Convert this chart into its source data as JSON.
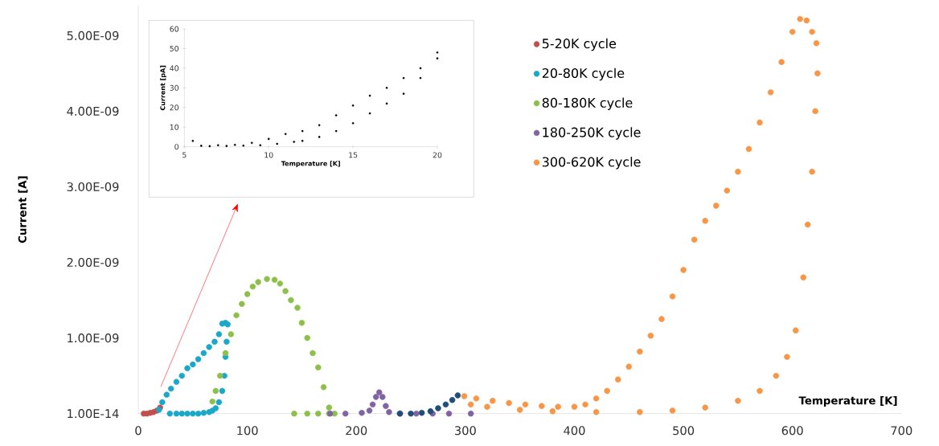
{
  "chart_data": [
    {
      "type": "scatter",
      "xlabel": "Temperature [K]",
      "ylabel": "Current [A]",
      "xlim": [
        0,
        700
      ],
      "xticks": [
        0,
        100,
        200,
        300,
        400,
        500,
        600,
        700
      ],
      "ylim": [
        0,
        5.4e-09
      ],
      "yticks": [
        {
          "value": 1e-14,
          "label": "1.00E-14"
        },
        {
          "value": 1e-09,
          "label": "1.00E-09"
        },
        {
          "value": 2e-09,
          "label": "2.00E-09"
        },
        {
          "value": 3e-09,
          "label": "3.00E-09"
        },
        {
          "value": 4e-09,
          "label": "4.00E-09"
        },
        {
          "value": 5e-09,
          "label": "5.00E-09"
        }
      ],
      "legend": "top",
      "marker": "circle",
      "series": [
        {
          "name": "5-20K cycle",
          "color": "#c0504d",
          "x": [
            5,
            8,
            11,
            14,
            17,
            20
          ],
          "values": [
            0,
            0,
            1e-11,
            2e-11,
            4e-11,
            8e-11
          ]
        },
        {
          "name": "20-80K cycle",
          "color": "#1ba8c8",
          "x": [
            19,
            22,
            26,
            30,
            35,
            40,
            45,
            50,
            55,
            60,
            65,
            70,
            74,
            77,
            80,
            82,
            81,
            80,
            79,
            77,
            74,
            71,
            68,
            65,
            60,
            55,
            50,
            45,
            40,
            35,
            29
          ],
          "values": [
            5e-11,
            1.5e-10,
            2.5e-10,
            3.3e-10,
            4.2e-10,
            5e-10,
            6e-10,
            6.5e-10,
            7.2e-10,
            8e-10,
            8.8e-10,
            9.5e-10,
            1.05e-09,
            1.19e-09,
            1.2e-09,
            1.18e-09,
            9.5e-10,
            7.5e-10,
            5e-10,
            3e-10,
            1.5e-10,
            7e-11,
            4e-11,
            2e-11,
            1e-11,
            0,
            0,
            0,
            0,
            0,
            0
          ]
        },
        {
          "name": "80-180K cycle",
          "color": "#8cc04a",
          "x": [
            68,
            71,
            75,
            80,
            85,
            90,
            95,
            100,
            105,
            110,
            118,
            125,
            130,
            135,
            140,
            146,
            150,
            155,
            160,
            165,
            170,
            175,
            180,
            175,
            165,
            155,
            143
          ],
          "values": [
            1.6e-10,
            3e-10,
            5e-10,
            8e-10,
            1.05e-09,
            1.3e-09,
            1.45e-09,
            1.58e-09,
            1.68e-09,
            1.74e-09,
            1.78e-09,
            1.77e-09,
            1.72e-09,
            1.62e-09,
            1.5e-09,
            1.4e-09,
            1.2e-09,
            1e-09,
            8e-10,
            6.1e-10,
            3.5e-10,
            8e-11,
            0,
            0,
            0,
            0,
            0
          ]
        },
        {
          "name": "180-250K cycle",
          "color": "#8064a2",
          "x": [
            176,
            190,
            205,
            212,
            215,
            218,
            221,
            224,
            227,
            230,
            240,
            255,
            270,
            285,
            305
          ],
          "values": [
            0,
            0,
            1e-11,
            4e-11,
            1.2e-10,
            2.2e-10,
            2.8e-10,
            2.2e-10,
            1e-10,
            2e-11,
            0,
            0,
            0,
            0,
            0
          ]
        },
        {
          "color": "#1f4e79",
          "x": [
            240,
            250,
            260,
            268,
            275,
            282,
            288,
            293
          ],
          "values": [
            0,
            0,
            1e-11,
            3e-11,
            7e-11,
            1.2e-10,
            1.8e-10,
            2.4e-10
          ]
        },
        {
          "name": "300-620K cycle",
          "color": "#f79646",
          "x": [
            299,
            310,
            325,
            340,
            355,
            370,
            385,
            400,
            410,
            420,
            430,
            440,
            450,
            460,
            470,
            480,
            490,
            500,
            510,
            520,
            530,
            540,
            550,
            560,
            570,
            580,
            590,
            600,
            607,
            613,
            618,
            622,
            623,
            621,
            618,
            614,
            610,
            603,
            595,
            585,
            570,
            550,
            520,
            490,
            460,
            420,
            380,
            350,
            320,
            305
          ],
          "values": [
            2.3e-10,
            2e-10,
            1.7e-10,
            1.4e-10,
            1.2e-10,
            1e-10,
            9e-11,
            9e-11,
            1.2e-10,
            2e-10,
            3e-10,
            4.5e-10,
            6.2e-10,
            8.2e-10,
            1.03e-09,
            1.25e-09,
            1.55e-09,
            1.9e-09,
            2.3e-09,
            2.55e-09,
            2.75e-09,
            2.95e-09,
            3.2e-09,
            3.5e-09,
            3.85e-09,
            4.25e-09,
            4.65e-09,
            5.05e-09,
            5.22e-09,
            5.2e-09,
            5.05e-09,
            4.9e-09,
            4.5e-09,
            4e-09,
            3.2e-09,
            2.5e-09,
            1.8e-09,
            1.1e-09,
            7.5e-10,
            5e-10,
            3e-10,
            1.7e-10,
            8e-11,
            4e-11,
            2e-11,
            2e-11,
            3e-11,
            5e-11,
            9e-11,
            1.2e-10
          ]
        }
      ]
    },
    {
      "type": "scatter",
      "xlabel": "Temperature [K]",
      "ylabel": "Current [pA]",
      "xlim": [
        5,
        20
      ],
      "xticks": [
        5,
        10,
        15,
        20
      ],
      "ylim": [
        0,
        60
      ],
      "yticks": [
        0,
        10,
        20,
        30,
        40,
        50,
        60
      ],
      "marker": "circle",
      "series": [
        {
          "color": "#000000",
          "x": [
            5.5,
            6,
            7,
            8,
            9,
            10,
            11,
            12,
            13,
            14,
            15,
            16,
            17,
            18,
            19,
            20
          ],
          "values": [
            3,
            0.5,
            0.8,
            1,
            2,
            4,
            6.5,
            8,
            11,
            16,
            21,
            26,
            30,
            35,
            40,
            48
          ]
        },
        {
          "color": "#000000",
          "x": [
            6.5,
            7.5,
            8.5,
            9.5,
            10.5,
            11.5,
            12,
            13,
            14,
            15,
            16,
            17,
            18,
            19,
            20
          ],
          "values": [
            0.3,
            0.4,
            0.6,
            0.8,
            1.5,
            2.5,
            3,
            5,
            8,
            12,
            17,
            22,
            27,
            35,
            45
          ]
        }
      ]
    }
  ]
}
